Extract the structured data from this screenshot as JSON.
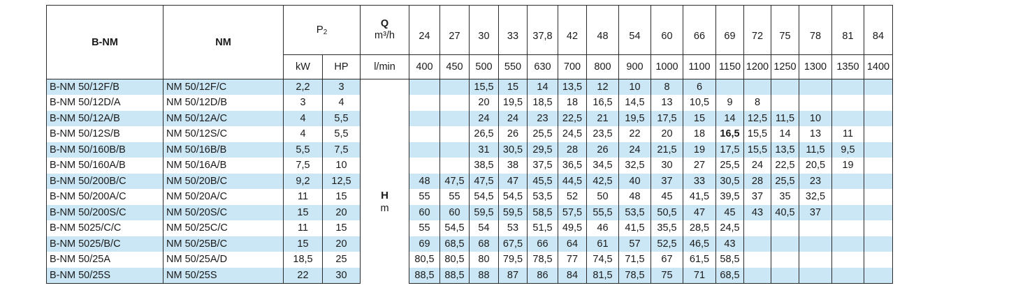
{
  "header": {
    "col_model_a": "B-NM",
    "col_model_b": "NM",
    "power_label": "P",
    "power_sub": "2",
    "power_units": [
      "kW",
      "HP"
    ],
    "q_label": "Q",
    "q_unit_m3h": "m³/h",
    "q_unit_lmin": "l/min",
    "q_m3h": [
      "24",
      "27",
      "30",
      "33",
      "37,8",
      "42",
      "48",
      "54",
      "60",
      "66",
      "69",
      "72",
      "75",
      "78",
      "81",
      "84"
    ],
    "q_lmin": [
      "400",
      "450",
      "500",
      "550",
      "630",
      "700",
      "800",
      "900",
      "1000",
      "1100",
      "1150",
      "1200",
      "1250",
      "1300",
      "1350",
      "1400"
    ],
    "h_label": "H",
    "h_unit": "m"
  },
  "rows": [
    {
      "a": "B-NM 50/12F/B",
      "b": "NM 50/12F/C",
      "kw": "2,2",
      "hp": "3",
      "h": [
        "",
        "",
        "15,5",
        "15",
        "14",
        "13,5",
        "12",
        "10",
        "8",
        "6",
        "",
        "",
        "",
        "",
        "",
        ""
      ]
    },
    {
      "a": "B-NM 50/12D/A",
      "b": "NM 50/12D/B",
      "kw": "3",
      "hp": "4",
      "h": [
        "",
        "",
        "20",
        "19,5",
        "18,5",
        "18",
        "16,5",
        "14,5",
        "13",
        "10,5",
        "9",
        "8",
        "",
        "",
        "",
        ""
      ]
    },
    {
      "a": "B-NM 50/12A/B",
      "b": "NM 50/12A/C",
      "kw": "4",
      "hp": "5,5",
      "h": [
        "",
        "",
        "24",
        "24",
        "23",
        "22,5",
        "21",
        "19,5",
        "17,5",
        "15",
        "14",
        "12,5",
        "11,5",
        "10",
        "",
        ""
      ]
    },
    {
      "a": "B-NM 50/12S/B",
      "b": "NM 50/12S/C",
      "kw": "4",
      "hp": "5,5",
      "h": [
        "",
        "",
        "26,5",
        "26",
        "25,5",
        "24,5",
        "23,5",
        "22",
        "20",
        "18",
        "16,5",
        "15,5",
        "14",
        "13",
        "11",
        ""
      ]
    },
    {
      "a": "B-NM 50/160B/B",
      "b": "NM 50/16B/B",
      "kw": "5,5",
      "hp": "7,5",
      "h": [
        "",
        "",
        "31",
        "30,5",
        "29,5",
        "28",
        "26",
        "24",
        "21,5",
        "19",
        "17,5",
        "15,5",
        "13,5",
        "11,5",
        "9,5",
        ""
      ]
    },
    {
      "a": "B-NM 50/160A/B",
      "b": "NM 50/16A/B",
      "kw": "7,5",
      "hp": "10",
      "h": [
        "",
        "",
        "38,5",
        "38",
        "37,5",
        "36,5",
        "34,5",
        "32,5",
        "30",
        "27",
        "25,5",
        "24",
        "22,5",
        "20,5",
        "19",
        ""
      ]
    },
    {
      "a": "B-NM 50/200B/C",
      "b": "NM 50/20B/C",
      "kw": "9,2",
      "hp": "12,5",
      "h": [
        "48",
        "47,5",
        "47,5",
        "47",
        "45,5",
        "44,5",
        "42,5",
        "40",
        "37",
        "33",
        "30,5",
        "28",
        "25,5",
        "23",
        "",
        ""
      ]
    },
    {
      "a": "B-NM 50/200A/C",
      "b": "NM 50/20A/C",
      "kw": "11",
      "hp": "15",
      "h": [
        "55",
        "55",
        "54,5",
        "54,5",
        "53,5",
        "52",
        "50",
        "48",
        "45",
        "41,5",
        "39,5",
        "37",
        "35",
        "32,5",
        "",
        ""
      ]
    },
    {
      "a": "B-NM 50/200S/C",
      "b": "NM 50/20S/C",
      "kw": "15",
      "hp": "20",
      "h": [
        "60",
        "60",
        "59,5",
        "59,5",
        "58,5",
        "57,5",
        "55,5",
        "53,5",
        "50,5",
        "47",
        "45",
        "43",
        "40,5",
        "37",
        "",
        ""
      ]
    },
    {
      "a": "B-NM 5025/C/C",
      "b": "NM 50/25C/C",
      "kw": "11",
      "hp": "15",
      "h": [
        "55",
        "54,5",
        "54",
        "53",
        "51,5",
        "49,5",
        "46",
        "41,5",
        "35,5",
        "28,5",
        "24,5",
        "",
        "",
        "",
        "",
        ""
      ]
    },
    {
      "a": "B-NM 5025/B/C",
      "b": "NM 50/25B/C",
      "kw": "15",
      "hp": "20",
      "h": [
        "69",
        "68,5",
        "68",
        "67,5",
        "66",
        "64",
        "61",
        "57",
        "52,5",
        "46,5",
        "43",
        "",
        "",
        "",
        "",
        ""
      ]
    },
    {
      "a": "B-NM 50/25A",
      "b": "NM 50/25A/D",
      "kw": "18,5",
      "hp": "25",
      "h": [
        "80,5",
        "80,5",
        "80",
        "79,5",
        "78,5",
        "77",
        "74,5",
        "71,5",
        "67",
        "61,5",
        "58,5",
        "",
        "",
        "",
        "",
        ""
      ]
    },
    {
      "a": "B-NM 50/25S",
      "b": "NM 50/25S",
      "kw": "22",
      "hp": "30",
      "h": [
        "88,5",
        "88,5",
        "88",
        "87",
        "86",
        "84",
        "81,5",
        "78,5",
        "75",
        "71",
        "68,5",
        "",
        "",
        "",
        "",
        ""
      ]
    }
  ],
  "colors": {
    "shade": "#cbe7f5",
    "border": "#2a2a2a"
  }
}
